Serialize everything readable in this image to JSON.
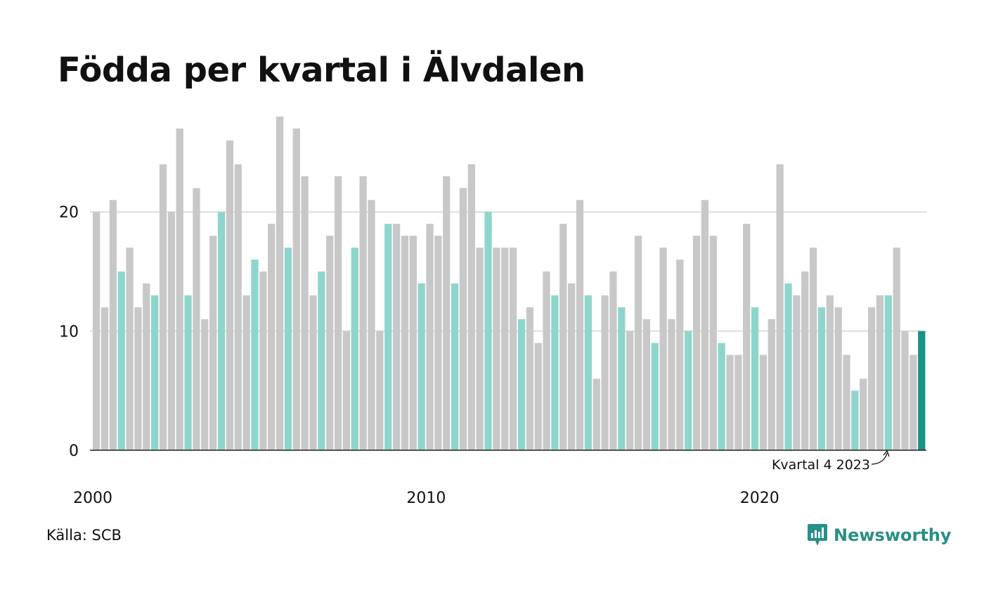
{
  "title": "Födda per kvartal i Älvdalen",
  "source": "Källa: SCB",
  "brand": "Newsworthy",
  "colors": {
    "bar_default": "#c8c8c8",
    "bar_highlight": "#8ed6cc",
    "bar_latest": "#1a9286",
    "grid": "#dddddd",
    "axis": "#222222",
    "brand": "#2a8f86"
  },
  "chart_data": {
    "type": "bar",
    "annotation": "Kvartal 4 2023",
    "x_tick_labels": [
      "2000",
      "2010",
      "2020"
    ],
    "y_ticks": [
      0,
      10,
      20
    ],
    "ylim": [
      0,
      28
    ],
    "highlight_quarter": 3,
    "start_year": 2000,
    "values": [
      20,
      12,
      21,
      15,
      17,
      12,
      14,
      13,
      24,
      20,
      27,
      13,
      22,
      11,
      18,
      20,
      26,
      24,
      13,
      16,
      15,
      19,
      28,
      17,
      27,
      23,
      13,
      15,
      18,
      23,
      10,
      17,
      23,
      21,
      10,
      19,
      19,
      18,
      18,
      14,
      19,
      18,
      23,
      14,
      22,
      24,
      17,
      20,
      17,
      17,
      17,
      11,
      12,
      9,
      15,
      13,
      19,
      14,
      21,
      13,
      6,
      13,
      15,
      12,
      10,
      18,
      11,
      9,
      17,
      11,
      16,
      10,
      18,
      21,
      18,
      9,
      8,
      8,
      19,
      12,
      8,
      11,
      24,
      14,
      13,
      15,
      17,
      12,
      13,
      12,
      8,
      5,
      6,
      12,
      13,
      13,
      17,
      10,
      8,
      10
    ]
  }
}
